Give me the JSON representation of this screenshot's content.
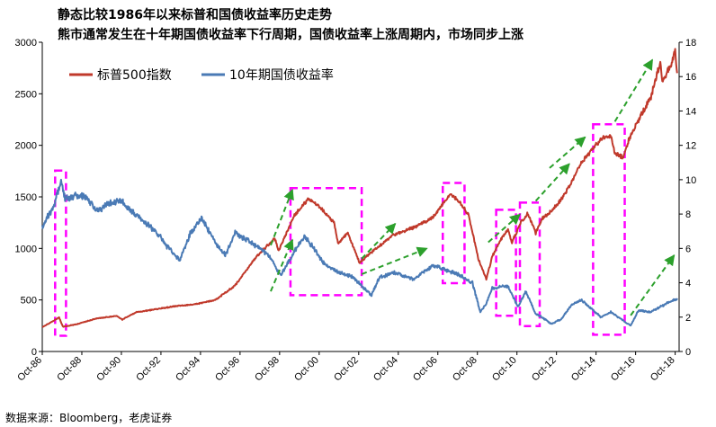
{
  "title_line1": "静态比较1986年以来标普和国债收益率历史走势",
  "title_line2": "熊市通常发生在十年期国债收益率下行周期，国债收益率上涨周期内，市场同步上涨",
  "source": "数据来源：Bloomberg，老虎证券",
  "colors": {
    "sp500": "#c0392b",
    "yield": "#4a7ab5",
    "highlight": "#ff00ff",
    "arrow": "#2ca02c"
  },
  "chart_data": {
    "type": "line",
    "title": "静态比较1986年以来标普和国债收益率历史走势",
    "xlabel": "",
    "ylabel_left": "标普500指数",
    "ylabel_right": "10年期国债收益率",
    "x_range": [
      1986.75,
      2018.95
    ],
    "ylim_left": [
      0,
      3000
    ],
    "ylim_right": [
      0,
      18
    ],
    "yticks_left": [
      "0",
      "500",
      "1000",
      "1500",
      "2000",
      "2500",
      "3000"
    ],
    "yticks_right": [
      "0",
      "2",
      "4",
      "6",
      "8",
      "10",
      "12",
      "14",
      "16",
      "18"
    ],
    "xtick_labels": [
      "Oct-86",
      "Oct-88",
      "Oct-90",
      "Oct-92",
      "Oct-94",
      "Oct-96",
      "Oct-98",
      "Oct-00",
      "Oct-02",
      "Oct-04",
      "Oct-06",
      "Oct-08",
      "Oct-10",
      "Oct-12",
      "Oct-14",
      "Oct-16",
      "Oct-18"
    ],
    "legend": [
      "标普500指数",
      "10年期国债收益率"
    ],
    "series": [
      {
        "name": "标普500指数",
        "axis": "left",
        "x": [
          1986.75,
          1987.6,
          1987.8,
          1988.5,
          1989.5,
          1990.5,
          1990.8,
          1991.5,
          1992.5,
          1993.5,
          1994.5,
          1995.5,
          1996.5,
          1997.5,
          1998.5,
          1998.7,
          1999.5,
          2000.2,
          2000.7,
          2001.5,
          2001.7,
          2002.2,
          2002.8,
          2003.5,
          2004.5,
          2005.5,
          2006.5,
          2007.4,
          2007.8,
          2008.3,
          2008.8,
          2009.2,
          2009.5,
          2010.0,
          2010.3,
          2010.5,
          2011.0,
          2011.3,
          2011.7,
          2012.0,
          2012.5,
          2013.0,
          2013.5,
          2014.0,
          2014.5,
          2015.0,
          2015.5,
          2015.7,
          2016.1,
          2016.5,
          2017.0,
          2017.5,
          2018.0,
          2018.1,
          2018.5,
          2018.75,
          2018.85
        ],
        "values": [
          235,
          330,
          240,
          265,
          320,
          345,
          310,
          380,
          410,
          440,
          460,
          500,
          640,
          900,
          1100,
          980,
          1320,
          1480,
          1420,
          1250,
          1050,
          1150,
          860,
          980,
          1130,
          1200,
          1300,
          1530,
          1460,
          1330,
          900,
          700,
          920,
          1110,
          1180,
          1060,
          1270,
          1340,
          1150,
          1290,
          1360,
          1480,
          1640,
          1830,
          1950,
          2060,
          2100,
          1920,
          1880,
          2100,
          2280,
          2450,
          2800,
          2620,
          2760,
          2920,
          2700
        ]
      },
      {
        "name": "10年期国债收益率",
        "axis": "right",
        "x": [
          1986.75,
          1987.0,
          1987.3,
          1987.7,
          1987.9,
          1988.5,
          1989.0,
          1989.5,
          1990.0,
          1990.7,
          1991.5,
          1992.5,
          1993.0,
          1993.7,
          1994.2,
          1994.8,
          1995.5,
          1996.0,
          1996.5,
          1997.5,
          1998.2,
          1998.8,
          1999.5,
          2000.0,
          2000.5,
          2001.0,
          2001.8,
          2002.5,
          2002.9,
          2003.4,
          2003.8,
          2004.5,
          2005.5,
          2006.5,
          2007.0,
          2007.8,
          2008.5,
          2008.9,
          2009.2,
          2009.5,
          2010.3,
          2010.8,
          2011.2,
          2011.7,
          2012.0,
          2012.5,
          2013.0,
          2013.5,
          2014.0,
          2014.5,
          2015.0,
          2015.5,
          2016.0,
          2016.5,
          2016.9,
          2017.5,
          2018.0,
          2018.5,
          2018.85
        ],
        "values": [
          7.2,
          7.8,
          8.3,
          9.9,
          8.9,
          9.1,
          8.9,
          8.2,
          8.5,
          8.8,
          7.9,
          7.0,
          6.2,
          5.3,
          6.8,
          7.8,
          6.3,
          5.6,
          6.9,
          6.2,
          5.6,
          4.4,
          5.8,
          6.7,
          6.0,
          5.1,
          4.6,
          4.3,
          3.8,
          3.3,
          4.3,
          4.6,
          4.2,
          5.0,
          4.8,
          4.5,
          4.0,
          2.3,
          2.8,
          3.7,
          3.8,
          2.6,
          3.5,
          2.2,
          2.0,
          1.6,
          1.9,
          2.7,
          3.0,
          2.5,
          2.0,
          2.3,
          1.9,
          1.5,
          2.4,
          2.3,
          2.6,
          2.9,
          3.1
        ]
      }
    ],
    "highlight_periods": [
      [
        1987.4,
        1987.95
      ],
      [
        1999.3,
        2002.9
      ],
      [
        2007.0,
        2008.1
      ],
      [
        2009.7,
        2010.7
      ],
      [
        2010.9,
        2011.9
      ],
      [
        2014.6,
        2016.2
      ]
    ],
    "trend_arrows": [
      {
        "axis": "left",
        "from": [
          1998.3,
          1030
        ],
        "to": [
          1999.4,
          1570
        ]
      },
      {
        "axis": "right",
        "from": [
          1998.3,
          3.5
        ],
        "to": [
          1999.4,
          6.5
        ]
      },
      {
        "axis": "left",
        "from": [
          2002.9,
          900
        ],
        "to": [
          2004.6,
          1240
        ]
      },
      {
        "axis": "right",
        "from": [
          2002.9,
          4.5
        ],
        "to": [
          2006.2,
          6.0
        ]
      },
      {
        "axis": "left",
        "from": [
          2009.3,
          1060
        ],
        "to": [
          2010.9,
          1330
        ]
      },
      {
        "axis": "left",
        "from": [
          2011.7,
          1460
        ],
        "to": [
          2013.4,
          1820
        ]
      },
      {
        "axis": "left",
        "from": [
          2012.4,
          1780
        ],
        "to": [
          2014.2,
          2080
        ]
      },
      {
        "axis": "left",
        "from": [
          2015.7,
          2230
        ],
        "to": [
          2017.6,
          2830
        ]
      },
      {
        "axis": "right",
        "from": [
          2016.5,
          2.1
        ],
        "to": [
          2018.7,
          5.6
        ]
      }
    ]
  }
}
